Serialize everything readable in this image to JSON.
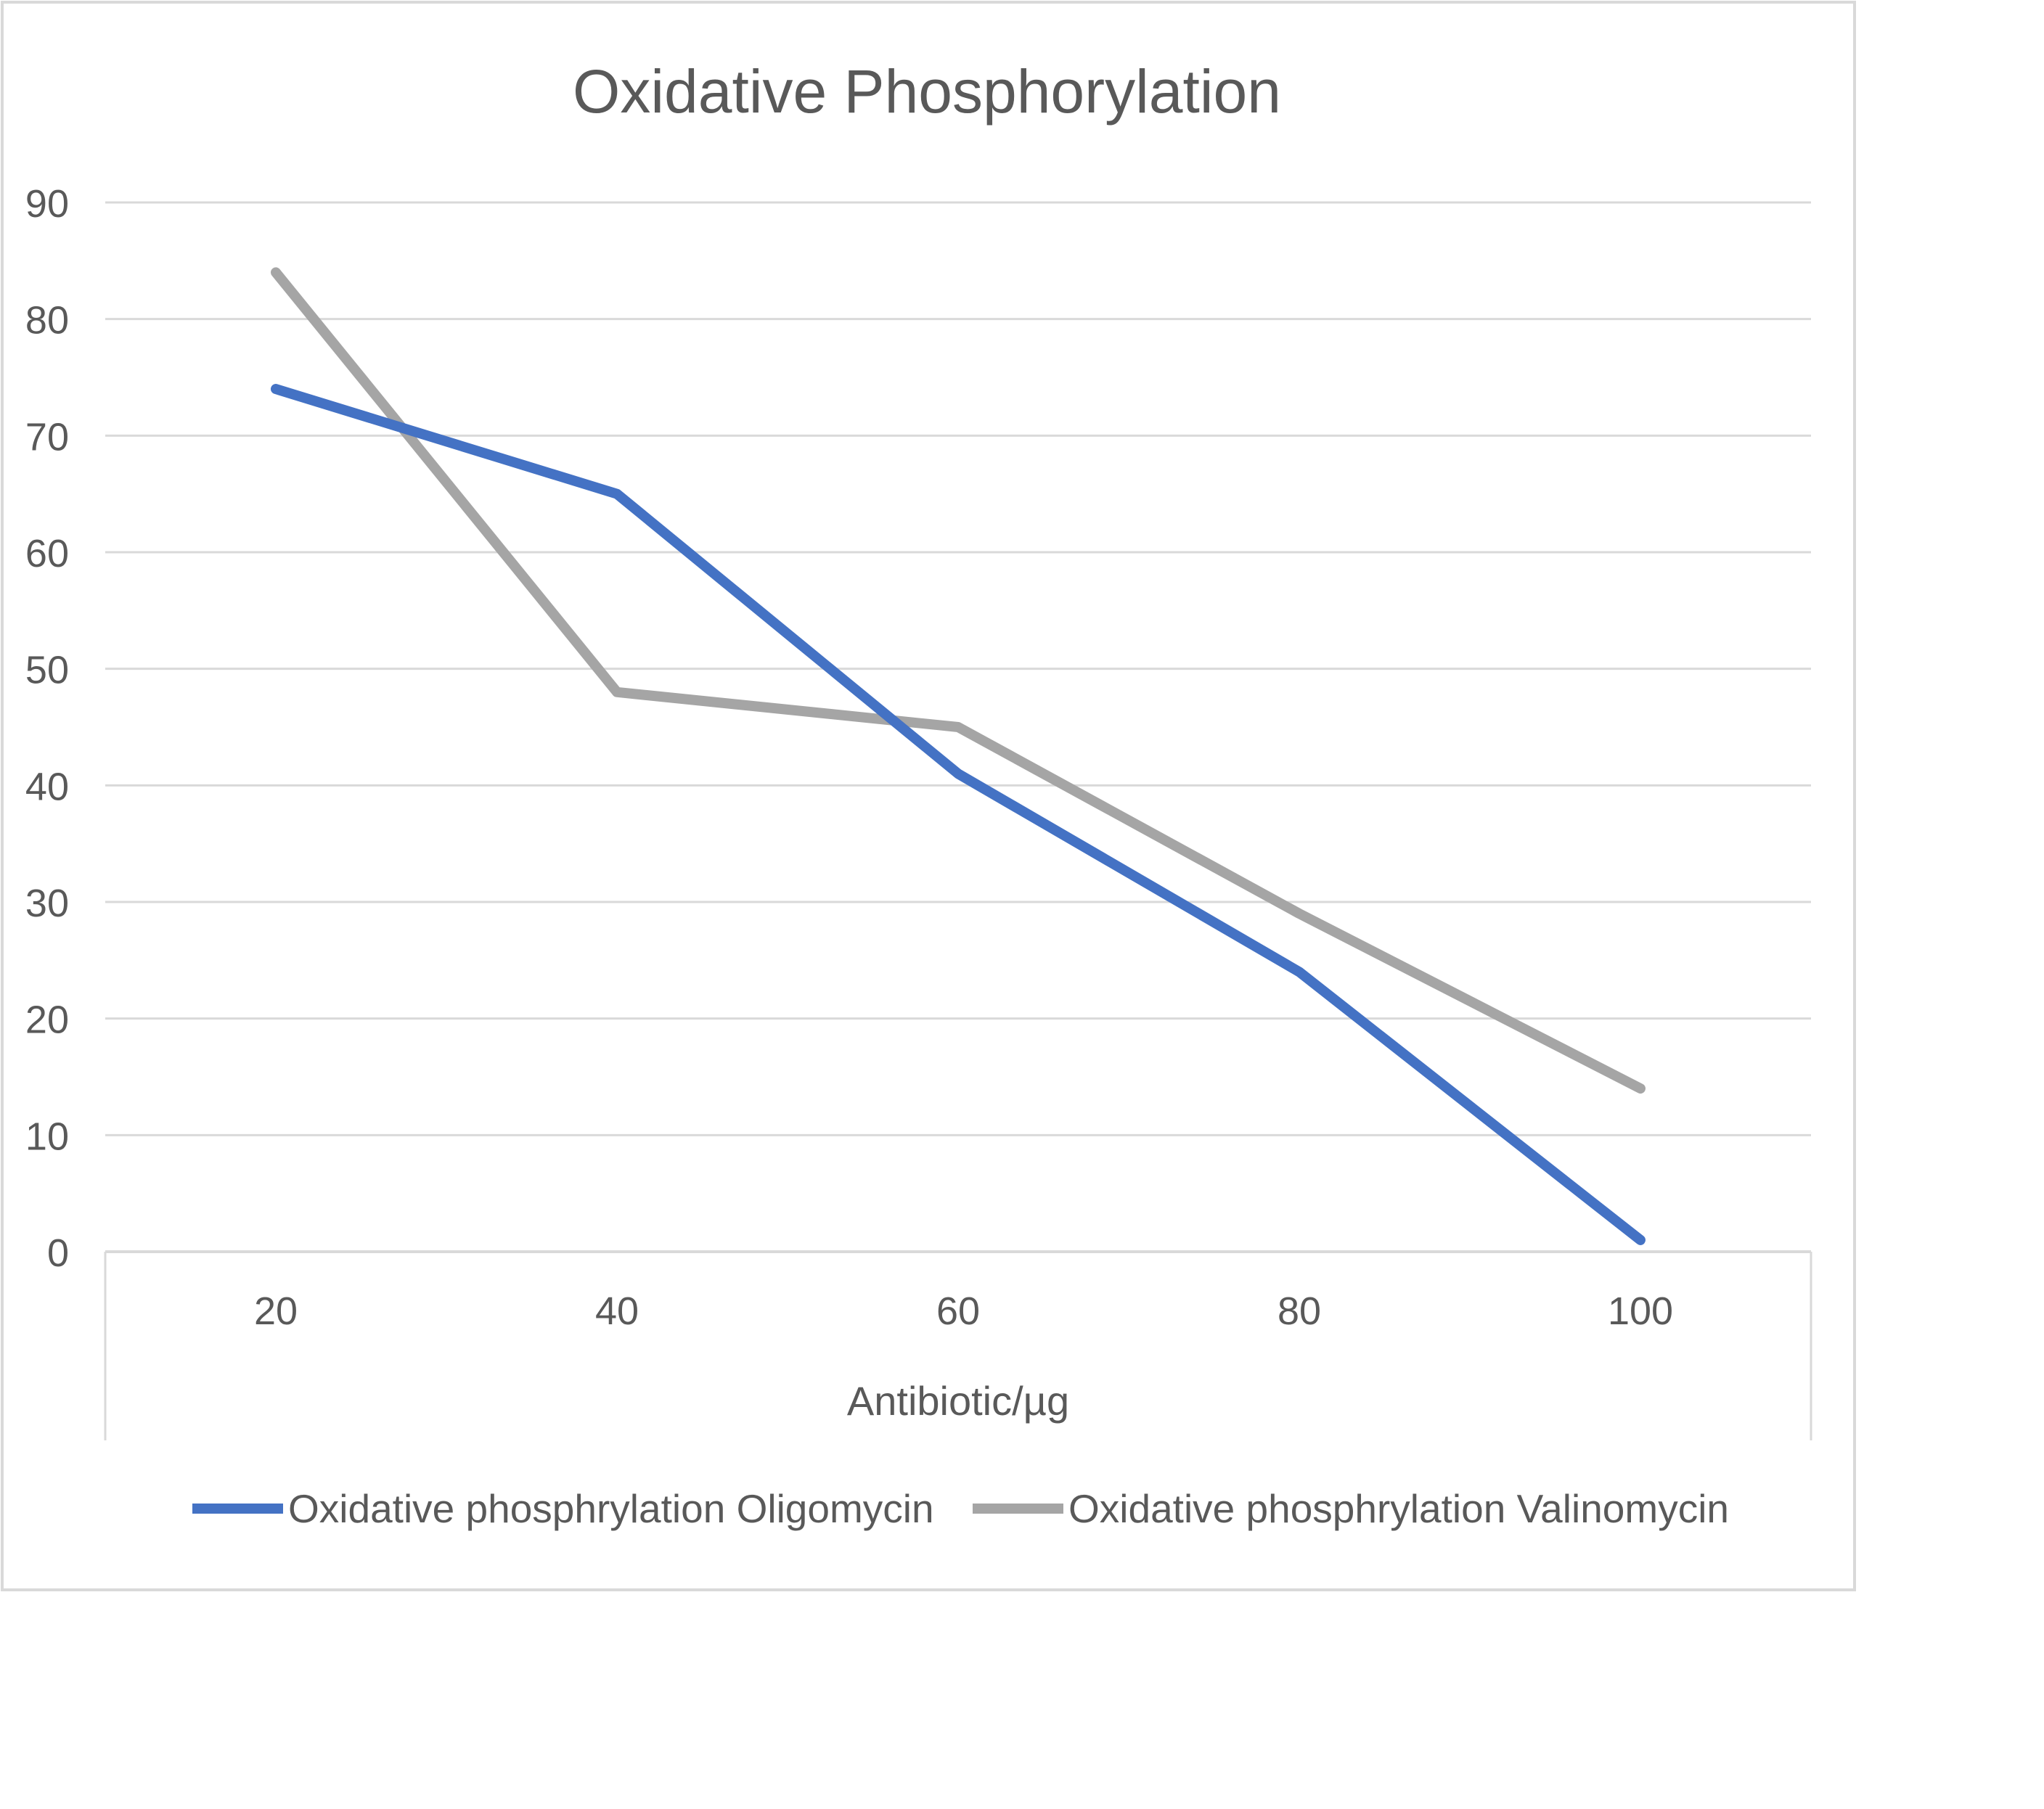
{
  "chart_data": {
    "type": "line",
    "title": "Oxidative Phosphorylation",
    "xlabel": "Antibiotic/µg",
    "ylabel": "",
    "categories": [
      "20",
      "40",
      "60",
      "80",
      "100"
    ],
    "ylim": [
      0,
      90
    ],
    "yticks": [
      "0",
      "10",
      "20",
      "30",
      "40",
      "50",
      "60",
      "70",
      "80",
      "90"
    ],
    "grid": true,
    "legend_position": "bottom",
    "series": [
      {
        "name": "Oxidative phosphrylation Oligomycin",
        "values": [
          74,
          65,
          41,
          24,
          1
        ],
        "color": "#4472c4"
      },
      {
        "name": "Oxidative phosphrylation Valinomycin",
        "values": [
          84,
          48,
          45,
          29,
          14
        ],
        "color": "#a5a5a5"
      }
    ]
  }
}
